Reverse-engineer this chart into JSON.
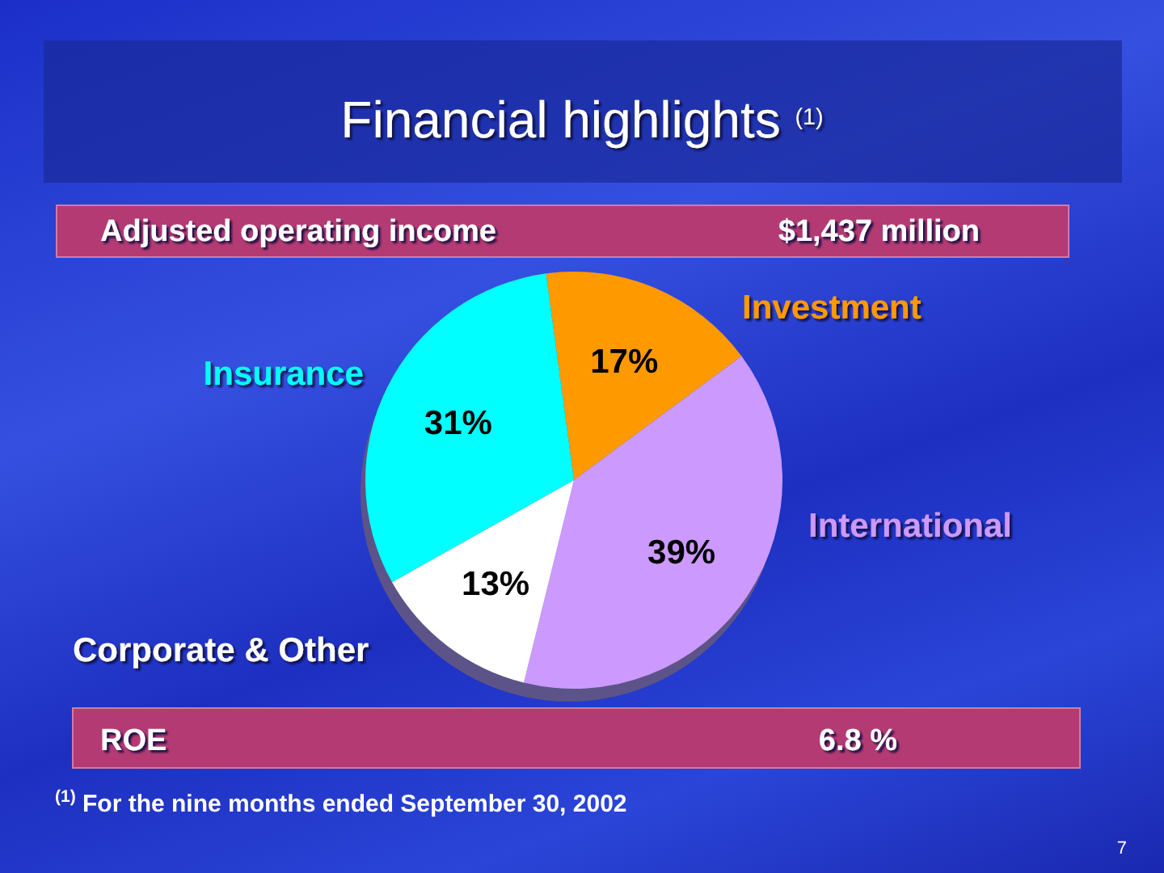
{
  "chart_data": {
    "type": "pie",
    "title": "Financial highlights $^{(1)}$",
    "categories": [
      "Investment",
      "International",
      "Corporate & Other",
      "Insurance"
    ],
    "values": [
      17,
      39,
      13,
      31
    ],
    "value_labels": [
      "17%",
      "39%",
      "13%",
      "31%"
    ],
    "colors": [
      "#ff9900",
      "#cc99ff",
      "#ffffff",
      "#00ffff"
    ],
    "annotations": [
      "Adjusted operating income",
      "$1,437 million",
      "ROE",
      "6.8 %",
      "$^{(1)}$ For the nine months ended September 30, 2002",
      "7"
    ]
  }
}
